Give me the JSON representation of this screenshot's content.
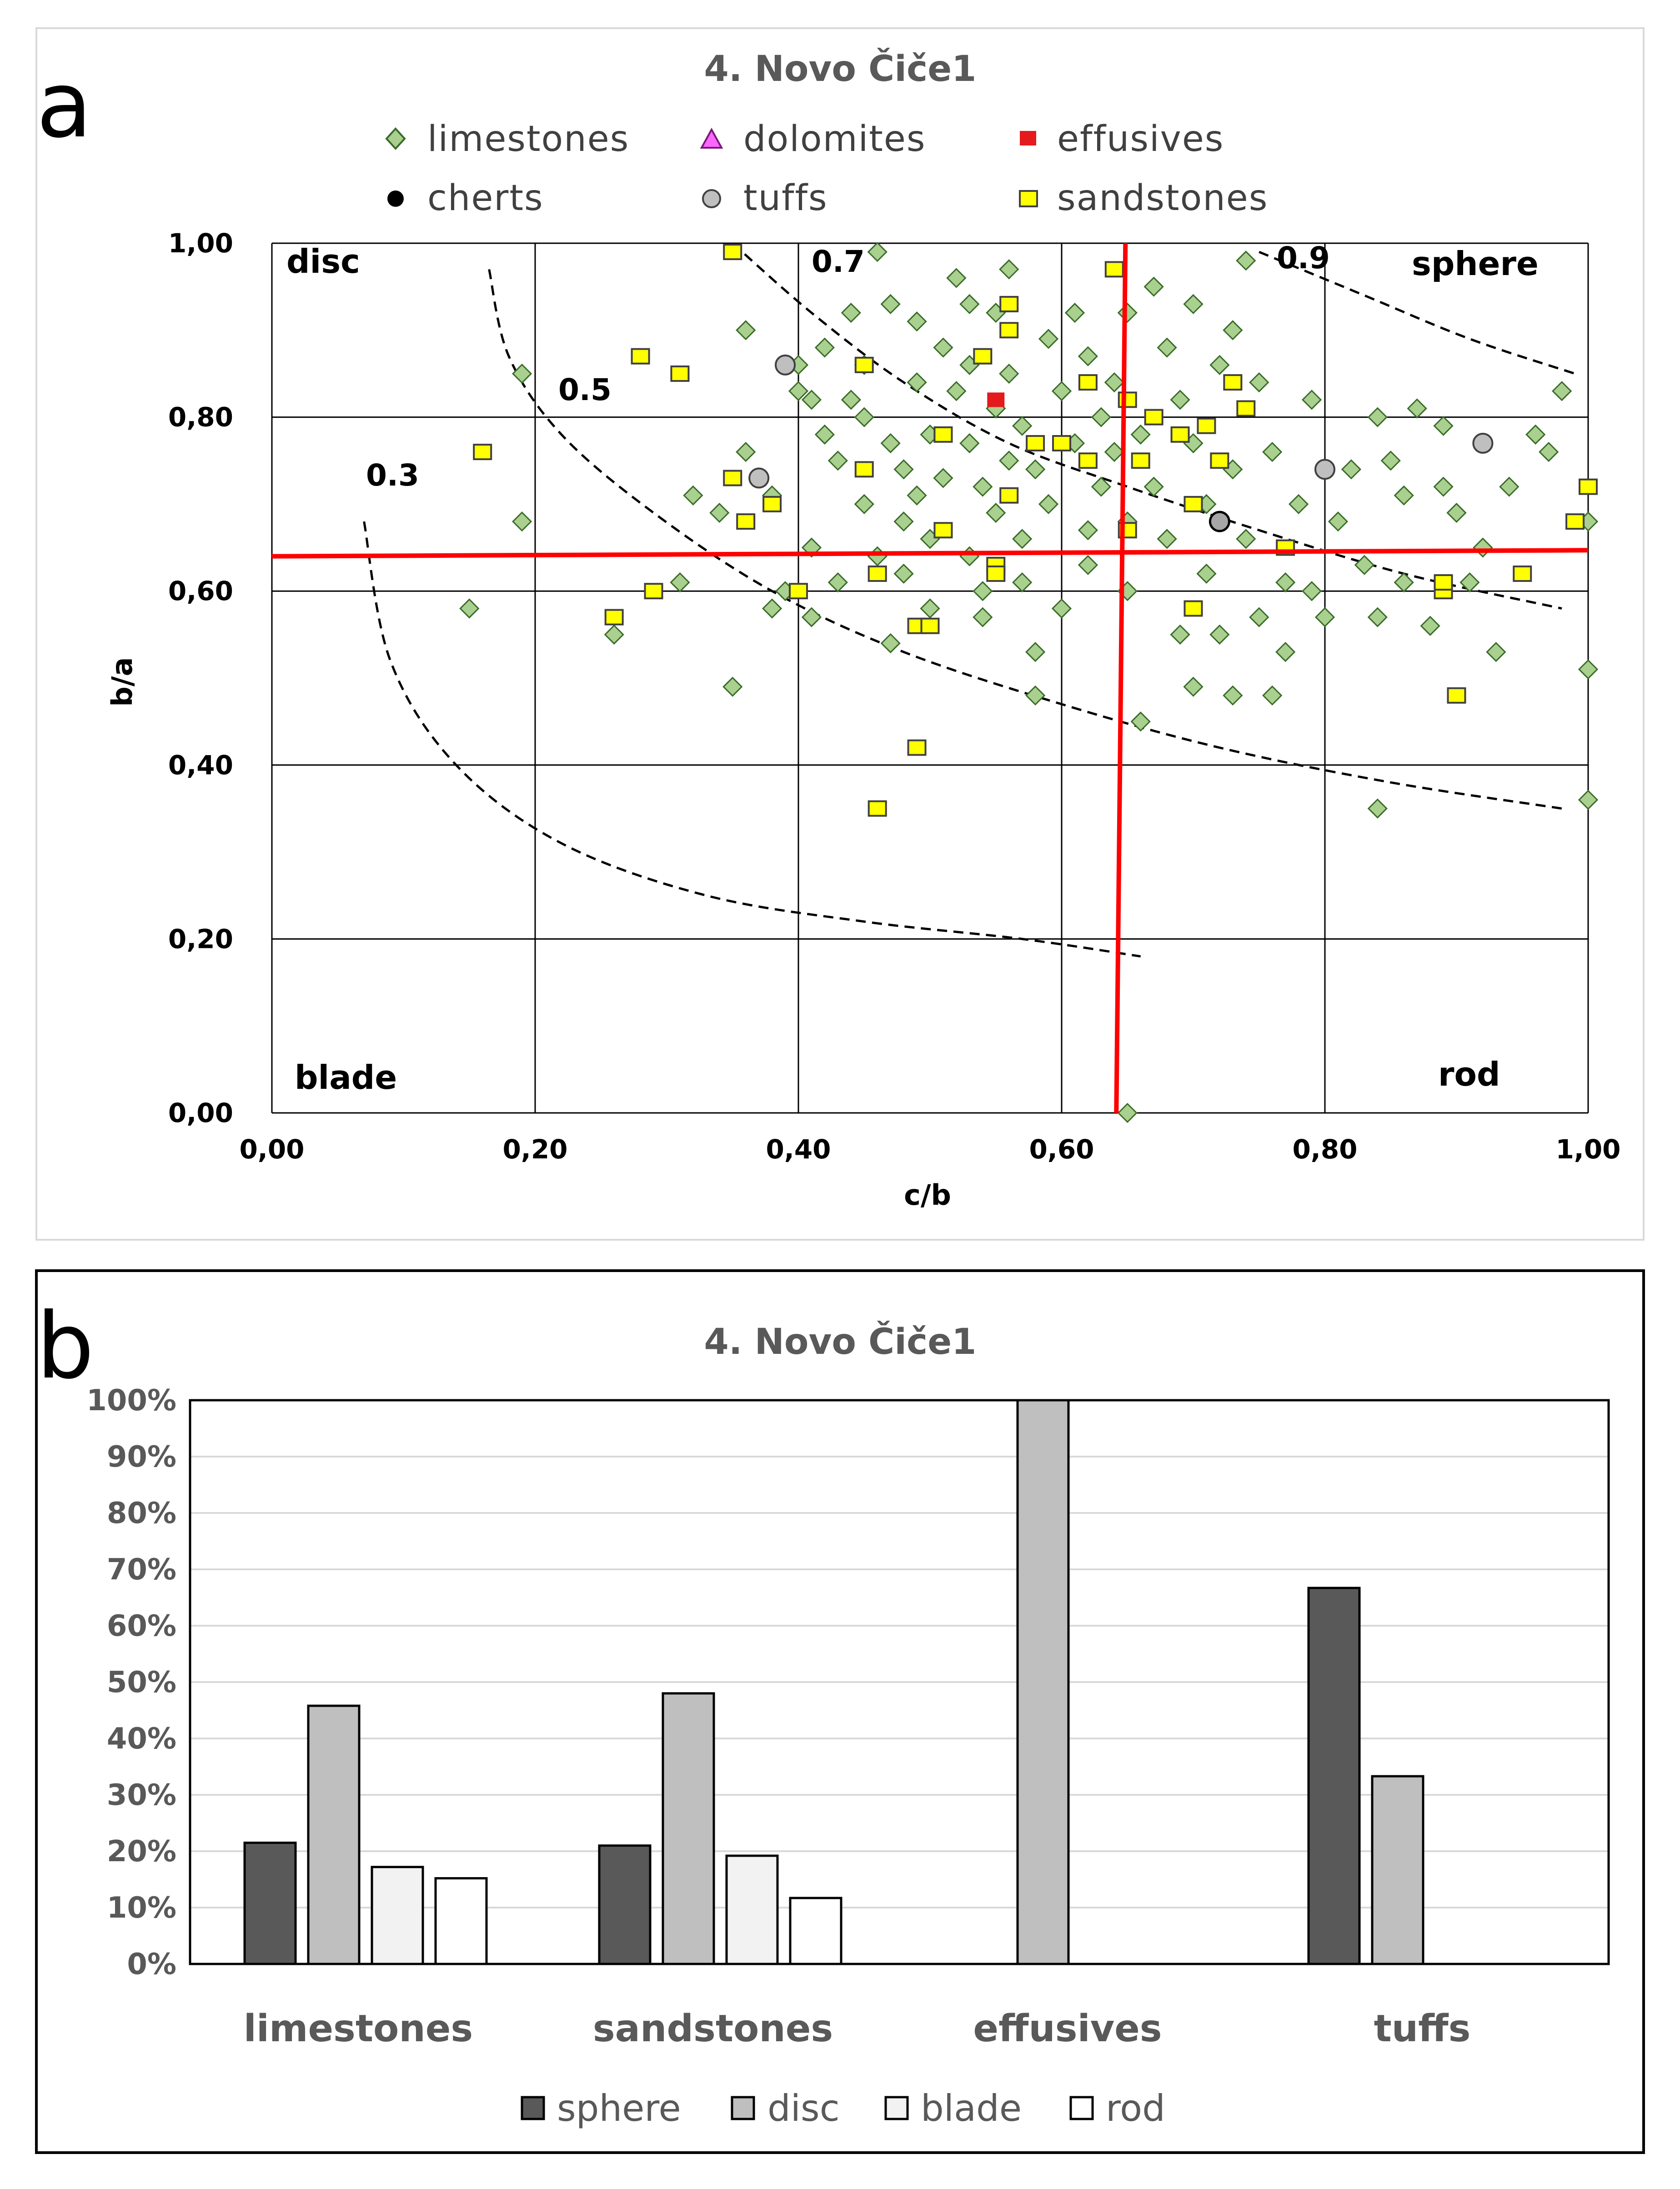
{
  "colors": {
    "limestones": "#a9d08e",
    "limestones_edge": "#3a6b2a",
    "dolomites": "#ff66ff",
    "effusives": "#e41a1c",
    "cherts": "#000000",
    "tuffs": "#bfbfbf",
    "sandstones": "#ffff00",
    "red_line": "#ff0000",
    "sphere": "#595959",
    "disc": "#bfbfbf",
    "blade": "#f2f2f2",
    "rod": "#ffffff"
  },
  "panel_a": {
    "label": "a",
    "chart_data": {
      "type": "scatter",
      "title": "4. Novo Čiče1",
      "xlabel": "c/b",
      "ylabel": "b/a",
      "xlim": [
        0,
        1
      ],
      "ylim": [
        0,
        1
      ],
      "xticks": [
        "0,00",
        "0,20",
        "0,40",
        "0,60",
        "0,80",
        "1,00"
      ],
      "yticks": [
        "0,00",
        "0,20",
        "0,40",
        "0,60",
        "0,80",
        "1,00"
      ],
      "legend": [
        {
          "name": "limestones",
          "marker": "diamond"
        },
        {
          "name": "dolomites",
          "marker": "triangle"
        },
        {
          "name": "effusives",
          "marker": "square-red"
        },
        {
          "name": "cherts",
          "marker": "circle-black"
        },
        {
          "name": "tuffs",
          "marker": "circle-grey"
        },
        {
          "name": "sandstones",
          "marker": "square-yellow"
        }
      ],
      "regions": {
        "disc": "disc",
        "sphere": "sphere",
        "blade": "blade",
        "rod": "rod"
      },
      "divider_lines": {
        "x": 0.645,
        "y": 0.645
      },
      "contours": [
        {
          "label": "0.3",
          "points": [
            [
              0.07,
              0.68
            ],
            [
              0.09,
              0.52
            ],
            [
              0.14,
              0.4
            ],
            [
              0.22,
              0.31
            ],
            [
              0.33,
              0.25
            ],
            [
              0.45,
              0.22
            ],
            [
              0.57,
              0.2
            ],
            [
              0.66,
              0.18
            ]
          ]
        },
        {
          "label": "0.5",
          "points": [
            [
              0.165,
              0.97
            ],
            [
              0.18,
              0.87
            ],
            [
              0.22,
              0.78
            ],
            [
              0.29,
              0.69
            ],
            [
              0.38,
              0.6
            ],
            [
              0.48,
              0.53
            ],
            [
              0.6,
              0.47
            ],
            [
              0.72,
              0.42
            ],
            [
              0.85,
              0.38
            ],
            [
              0.98,
              0.35
            ]
          ]
        },
        {
          "label": "0.7",
          "points": [
            [
              0.35,
              1.0
            ],
            [
              0.41,
              0.92
            ],
            [
              0.48,
              0.84
            ],
            [
              0.56,
              0.77
            ],
            [
              0.65,
              0.72
            ],
            [
              0.75,
              0.67
            ],
            [
              0.86,
              0.62
            ],
            [
              0.98,
              0.58
            ]
          ]
        },
        {
          "label": "0.9",
          "points": [
            [
              0.75,
              0.99
            ],
            [
              0.83,
              0.94
            ],
            [
              0.91,
              0.89
            ],
            [
              0.99,
              0.85
            ]
          ]
        }
      ],
      "series": [
        {
          "name": "limestones",
          "points": [
            [
              0.19,
              0.85
            ],
            [
              0.15,
              0.58
            ],
            [
              0.19,
              0.68
            ],
            [
              0.26,
              0.55
            ],
            [
              0.31,
              0.61
            ],
            [
              0.32,
              0.71
            ],
            [
              0.34,
              0.69
            ],
            [
              0.35,
              0.49
            ],
            [
              0.36,
              0.9
            ],
            [
              0.36,
              0.76
            ],
            [
              0.38,
              0.58
            ],
            [
              0.38,
              0.71
            ],
            [
              0.39,
              0.6
            ],
            [
              0.4,
              0.83
            ],
            [
              0.4,
              0.86
            ],
            [
              0.41,
              0.82
            ],
            [
              0.41,
              0.65
            ],
            [
              0.41,
              0.57
            ],
            [
              0.42,
              0.88
            ],
            [
              0.42,
              0.78
            ],
            [
              0.43,
              0.61
            ],
            [
              0.43,
              0.75
            ],
            [
              0.44,
              0.82
            ],
            [
              0.44,
              0.92
            ],
            [
              0.45,
              0.86
            ],
            [
              0.45,
              0.8
            ],
            [
              0.45,
              0.7
            ],
            [
              0.46,
              0.99
            ],
            [
              0.46,
              0.64
            ],
            [
              0.47,
              0.93
            ],
            [
              0.47,
              0.77
            ],
            [
              0.47,
              0.54
            ],
            [
              0.48,
              0.62
            ],
            [
              0.48,
              0.68
            ],
            [
              0.48,
              0.74
            ],
            [
              0.49,
              0.84
            ],
            [
              0.49,
              0.91
            ],
            [
              0.49,
              0.71
            ],
            [
              0.5,
              0.78
            ],
            [
              0.5,
              0.66
            ],
            [
              0.5,
              0.58
            ],
            [
              0.51,
              0.73
            ],
            [
              0.51,
              0.88
            ],
            [
              0.52,
              0.83
            ],
            [
              0.52,
              0.96
            ],
            [
              0.53,
              0.86
            ],
            [
              0.53,
              0.93
            ],
            [
              0.53,
              0.77
            ],
            [
              0.53,
              0.64
            ],
            [
              0.54,
              0.72
            ],
            [
              0.54,
              0.6
            ],
            [
              0.54,
              0.57
            ],
            [
              0.55,
              0.92
            ],
            [
              0.55,
              0.81
            ],
            [
              0.55,
              0.69
            ],
            [
              0.56,
              0.75
            ],
            [
              0.56,
              0.97
            ],
            [
              0.56,
              0.85
            ],
            [
              0.57,
              0.79
            ],
            [
              0.57,
              0.66
            ],
            [
              0.57,
              0.61
            ],
            [
              0.58,
              0.74
            ],
            [
              0.58,
              0.53
            ],
            [
              0.58,
              0.48
            ],
            [
              0.59,
              0.89
            ],
            [
              0.59,
              0.7
            ],
            [
              0.6,
              0.83
            ],
            [
              0.6,
              0.58
            ],
            [
              0.61,
              0.92
            ],
            [
              0.61,
              0.77
            ],
            [
              0.62,
              0.87
            ],
            [
              0.62,
              0.67
            ],
            [
              0.62,
              0.63
            ],
            [
              0.63,
              0.8
            ],
            [
              0.63,
              0.72
            ],
            [
              0.64,
              0.76
            ],
            [
              0.64,
              0.84
            ],
            [
              0.65,
              0.68
            ],
            [
              0.65,
              0.92
            ],
            [
              0.65,
              0.6
            ],
            [
              0.65,
              0.0
            ],
            [
              0.66,
              0.78
            ],
            [
              0.66,
              0.45
            ],
            [
              0.67,
              0.72
            ],
            [
              0.67,
              0.95
            ],
            [
              0.68,
              0.88
            ],
            [
              0.68,
              0.66
            ],
            [
              0.69,
              0.82
            ],
            [
              0.69,
              0.55
            ],
            [
              0.7,
              0.93
            ],
            [
              0.7,
              0.77
            ],
            [
              0.7,
              0.49
            ],
            [
              0.71,
              0.7
            ],
            [
              0.71,
              0.62
            ],
            [
              0.72,
              0.86
            ],
            [
              0.72,
              0.55
            ],
            [
              0.73,
              0.9
            ],
            [
              0.73,
              0.74
            ],
            [
              0.73,
              0.48
            ],
            [
              0.74,
              0.66
            ],
            [
              0.74,
              0.98
            ],
            [
              0.75,
              0.84
            ],
            [
              0.75,
              0.57
            ],
            [
              0.76,
              0.76
            ],
            [
              0.76,
              0.48
            ],
            [
              0.77,
              0.53
            ],
            [
              0.77,
              0.61
            ],
            [
              0.78,
              0.7
            ],
            [
              0.79,
              0.82
            ],
            [
              0.79,
              0.6
            ],
            [
              0.8,
              0.57
            ],
            [
              0.81,
              0.68
            ],
            [
              0.82,
              0.74
            ],
            [
              0.83,
              0.63
            ],
            [
              0.84,
              0.8
            ],
            [
              0.84,
              0.57
            ],
            [
              0.84,
              0.35
            ],
            [
              0.85,
              0.75
            ],
            [
              0.86,
              0.71
            ],
            [
              0.86,
              0.61
            ],
            [
              0.87,
              0.81
            ],
            [
              0.88,
              0.56
            ],
            [
              0.89,
              0.79
            ],
            [
              0.89,
              0.72
            ],
            [
              0.9,
              0.69
            ],
            [
              0.91,
              0.61
            ],
            [
              0.92,
              0.65
            ],
            [
              0.93,
              0.53
            ],
            [
              0.94,
              0.72
            ],
            [
              0.96,
              0.78
            ],
            [
              0.97,
              0.76
            ],
            [
              0.98,
              0.83
            ],
            [
              1.0,
              0.68
            ],
            [
              1.0,
              0.51
            ],
            [
              1.0,
              0.36
            ]
          ]
        },
        {
          "name": "effusives",
          "points": [
            [
              0.55,
              0.82
            ]
          ]
        },
        {
          "name": "cherts",
          "points": [
            [
              0.72,
              0.68
            ]
          ]
        },
        {
          "name": "tuffs",
          "points": [
            [
              0.39,
              0.86
            ],
            [
              0.37,
              0.73
            ],
            [
              0.8,
              0.74
            ],
            [
              0.92,
              0.77
            ]
          ]
        },
        {
          "name": "sandstones",
          "points": [
            [
              0.16,
              0.76
            ],
            [
              0.26,
              0.57
            ],
            [
              0.28,
              0.87
            ],
            [
              0.29,
              0.6
            ],
            [
              0.31,
              0.85
            ],
            [
              0.35,
              0.73
            ],
            [
              0.35,
              0.99
            ],
            [
              0.36,
              0.68
            ],
            [
              0.38,
              0.7
            ],
            [
              0.4,
              0.6
            ],
            [
              0.45,
              0.74
            ],
            [
              0.45,
              0.86
            ],
            [
              0.46,
              0.62
            ],
            [
              0.46,
              0.35
            ],
            [
              0.49,
              0.56
            ],
            [
              0.49,
              0.42
            ],
            [
              0.5,
              0.56
            ],
            [
              0.51,
              0.67
            ],
            [
              0.51,
              0.78
            ],
            [
              0.54,
              0.87
            ],
            [
              0.55,
              0.63
            ],
            [
              0.55,
              0.62
            ],
            [
              0.56,
              0.93
            ],
            [
              0.56,
              0.71
            ],
            [
              0.56,
              0.9
            ],
            [
              0.58,
              0.77
            ],
            [
              0.6,
              0.77
            ],
            [
              0.62,
              0.75
            ],
            [
              0.62,
              0.84
            ],
            [
              0.64,
              0.97
            ],
            [
              0.65,
              0.82
            ],
            [
              0.65,
              0.67
            ],
            [
              0.66,
              0.75
            ],
            [
              0.67,
              0.8
            ],
            [
              0.69,
              0.78
            ],
            [
              0.7,
              0.7
            ],
            [
              0.7,
              0.58
            ],
            [
              0.71,
              0.79
            ],
            [
              0.72,
              0.75
            ],
            [
              0.73,
              0.84
            ],
            [
              0.74,
              0.81
            ],
            [
              0.77,
              0.65
            ],
            [
              0.89,
              0.6
            ],
            [
              0.89,
              0.61
            ],
            [
              0.9,
              0.48
            ],
            [
              0.95,
              0.62
            ],
            [
              0.99,
              0.68
            ],
            [
              1.0,
              0.72
            ]
          ]
        }
      ]
    }
  },
  "panel_b": {
    "label": "b",
    "chart_data": {
      "type": "bar",
      "title": "4. Novo Čiče1",
      "categories": [
        "limestones",
        "sandstones",
        "effusives",
        "tuffs"
      ],
      "ylim": [
        0,
        100
      ],
      "yticks": [
        "0%",
        "10%",
        "20%",
        "30%",
        "40%",
        "50%",
        "60%",
        "70%",
        "80%",
        "90%",
        "100%"
      ],
      "series": [
        {
          "name": "sphere",
          "values": [
            21.5,
            21,
            0,
            66.7
          ]
        },
        {
          "name": "disc",
          "values": [
            45.8,
            48,
            100,
            33.3
          ]
        },
        {
          "name": "blade",
          "values": [
            17.2,
            19.2,
            0,
            0
          ]
        },
        {
          "name": "rod",
          "values": [
            15.2,
            11.7,
            0,
            0
          ]
        }
      ]
    }
  }
}
